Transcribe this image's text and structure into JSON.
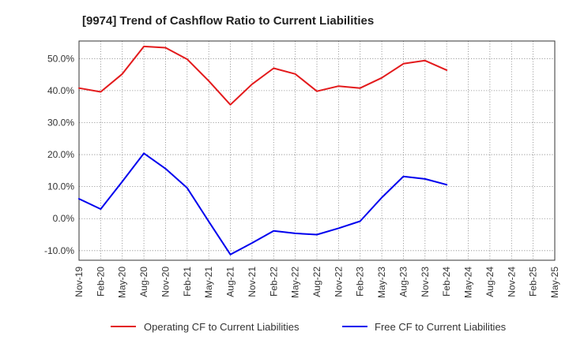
{
  "chart_data": {
    "type": "line",
    "title": "[9974]  Trend of Cashflow Ratio to Current Liabilities",
    "xlabel": "",
    "ylabel": "",
    "categories": [
      "Nov-19",
      "Feb-20",
      "May-20",
      "Aug-20",
      "Nov-20",
      "Feb-21",
      "May-21",
      "Aug-21",
      "Nov-21",
      "Feb-22",
      "May-22",
      "Aug-22",
      "Nov-22",
      "Feb-23",
      "May-23",
      "Aug-23",
      "Nov-23",
      "Feb-24",
      "May-24",
      "Aug-24",
      "Nov-24",
      "Feb-25",
      "May-25"
    ],
    "y_ticks": [
      "50.0%",
      "40.0%",
      "30.0%",
      "20.0%",
      "10.0%",
      "0.0%",
      "-10.0%"
    ],
    "y_tick_values": [
      50,
      40,
      30,
      20,
      10,
      0,
      -10
    ],
    "ylim": [
      -13,
      55.5
    ],
    "grid": true,
    "legend_position": "bottom",
    "series": [
      {
        "name": "Operating CF to Current Liabilities",
        "color": "#e31a1c",
        "values": [
          40.8,
          39.6,
          45.2,
          53.8,
          53.4,
          49.8,
          43.0,
          35.6,
          42.0,
          47.0,
          45.2,
          39.8,
          41.4,
          40.8,
          44.0,
          48.4,
          49.4,
          46.4,
          null,
          null,
          null,
          null,
          null
        ]
      },
      {
        "name": "Free CF to Current Liabilities",
        "color": "#0000ee",
        "values": [
          6.2,
          3.0,
          11.6,
          20.4,
          15.6,
          9.6,
          -0.9,
          -11.2,
          -7.6,
          -3.8,
          -4.6,
          -5.0,
          -3.0,
          -0.8,
          6.6,
          13.2,
          12.4,
          10.6,
          null,
          null,
          null,
          null,
          null
        ]
      }
    ]
  }
}
